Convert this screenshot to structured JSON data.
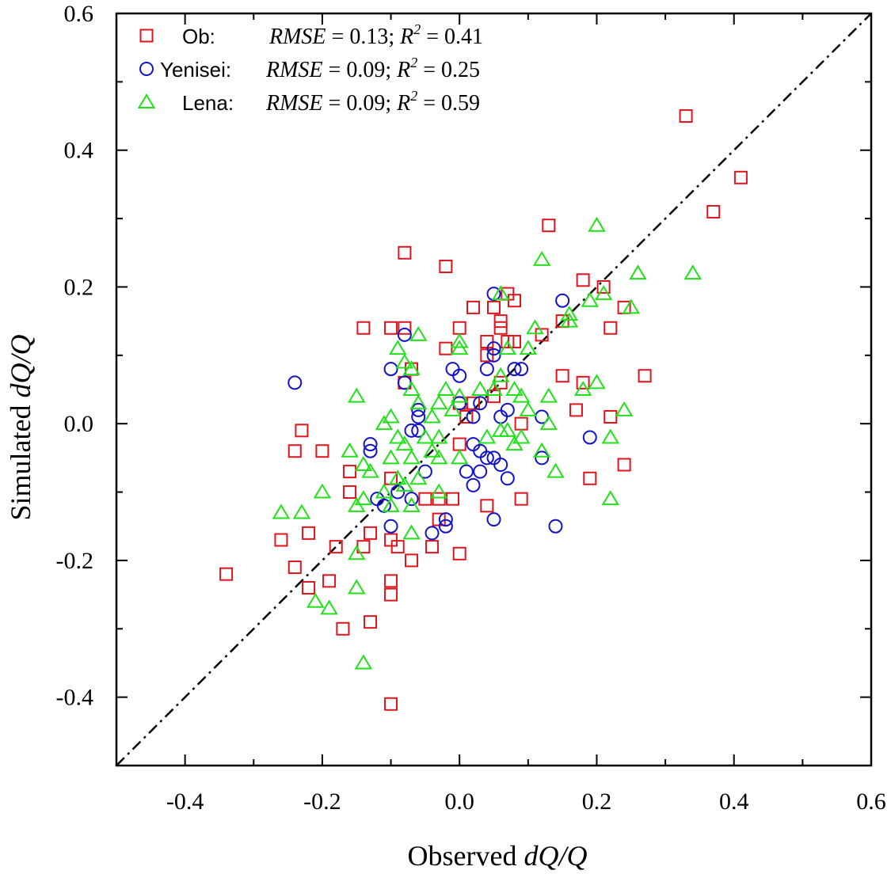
{
  "chart_data": {
    "type": "scatter",
    "xlabel": {
      "prefix": "Observed ",
      "italic": "dQ/Q"
    },
    "ylabel": {
      "prefix": "Simulated ",
      "italic": "dQ/Q"
    },
    "xlim": [
      -0.5,
      0.6
    ],
    "ylim": [
      -0.5,
      0.6
    ],
    "x_ticks": [
      "-0.4",
      "-0.2",
      "0.0",
      "0.2",
      "0.4",
      "0.6"
    ],
    "y_ticks": [
      "-0.4",
      "-0.2",
      "0.0",
      "0.2",
      "0.4",
      "0.6"
    ],
    "x_tick_values": [
      -0.4,
      -0.2,
      0.0,
      0.2,
      0.4,
      0.6
    ],
    "y_tick_values": [
      -0.4,
      -0.2,
      0.0,
      0.2,
      0.4,
      0.6
    ],
    "reference_line": "1:1 dash-dot",
    "legend_position": "top-left",
    "series": [
      {
        "name": "Ob:",
        "marker": "square",
        "color": "#e0141c",
        "stats": {
          "rmse_label": "RMSE",
          "rmse": "= 0.13;",
          "r2_label": "R",
          "r2_sup": "2",
          "r2": "= 0.41"
        },
        "points": [
          [
            -0.34,
            -0.22
          ],
          [
            -0.26,
            -0.17
          ],
          [
            -0.24,
            -0.04
          ],
          [
            -0.24,
            -0.21
          ],
          [
            -0.23,
            -0.01
          ],
          [
            -0.22,
            -0.16
          ],
          [
            -0.22,
            -0.24
          ],
          [
            -0.2,
            -0.04
          ],
          [
            -0.19,
            -0.23
          ],
          [
            -0.18,
            -0.18
          ],
          [
            -0.17,
            -0.3
          ],
          [
            -0.16,
            -0.07
          ],
          [
            -0.16,
            -0.1
          ],
          [
            -0.14,
            0.14
          ],
          [
            -0.14,
            -0.18
          ],
          [
            -0.13,
            -0.16
          ],
          [
            -0.13,
            -0.29
          ],
          [
            -0.1,
            0.14
          ],
          [
            -0.1,
            -0.08
          ],
          [
            -0.1,
            -0.17
          ],
          [
            -0.1,
            -0.23
          ],
          [
            -0.1,
            -0.25
          ],
          [
            -0.1,
            -0.41
          ],
          [
            -0.09,
            -0.18
          ],
          [
            -0.08,
            0.25
          ],
          [
            -0.08,
            0.14
          ],
          [
            -0.08,
            0.06
          ],
          [
            -0.07,
            0.08
          ],
          [
            -0.07,
            -0.2
          ],
          [
            -0.05,
            -0.11
          ],
          [
            -0.04,
            -0.18
          ],
          [
            -0.03,
            -0.14
          ],
          [
            -0.03,
            -0.11
          ],
          [
            -0.02,
            0.23
          ],
          [
            -0.02,
            0.11
          ],
          [
            -0.01,
            -0.11
          ],
          [
            0.0,
            0.14
          ],
          [
            0.0,
            0.03
          ],
          [
            0.0,
            -0.03
          ],
          [
            0.0,
            -0.19
          ],
          [
            0.01,
            0.01
          ],
          [
            0.02,
            0.17
          ],
          [
            0.02,
            0.03
          ],
          [
            0.04,
            0.12
          ],
          [
            0.04,
            0.1
          ],
          [
            0.04,
            -0.12
          ],
          [
            0.05,
            0.17
          ],
          [
            0.05,
            0.04
          ],
          [
            0.06,
            0.15
          ],
          [
            0.06,
            0.14
          ],
          [
            0.06,
            0.06
          ],
          [
            0.07,
            0.19
          ],
          [
            0.07,
            0.12
          ],
          [
            0.08,
            0.18
          ],
          [
            0.08,
            0.12
          ],
          [
            0.09,
            0.0
          ],
          [
            0.09,
            -0.11
          ],
          [
            0.12,
            0.13
          ],
          [
            0.13,
            0.29
          ],
          [
            0.15,
            0.15
          ],
          [
            0.15,
            0.07
          ],
          [
            0.17,
            0.02
          ],
          [
            0.18,
            0.21
          ],
          [
            0.18,
            0.06
          ],
          [
            0.19,
            -0.08
          ],
          [
            0.21,
            0.2
          ],
          [
            0.22,
            0.14
          ],
          [
            0.22,
            0.01
          ],
          [
            0.24,
            0.17
          ],
          [
            0.24,
            -0.06
          ],
          [
            0.27,
            0.07
          ],
          [
            0.33,
            0.45
          ],
          [
            0.37,
            0.31
          ],
          [
            0.41,
            0.36
          ]
        ]
      },
      {
        "name": "Yenisei:",
        "marker": "circle",
        "color": "#1212cc",
        "stats": {
          "rmse_label": "RMSE",
          "rmse": "= 0.09;",
          "r2_label": "R",
          "r2_sup": "2",
          "r2": "= 0.25"
        },
        "points": [
          [
            -0.24,
            0.06
          ],
          [
            -0.13,
            -0.03
          ],
          [
            -0.13,
            -0.04
          ],
          [
            -0.12,
            -0.11
          ],
          [
            -0.11,
            -0.12
          ],
          [
            -0.1,
            0.08
          ],
          [
            -0.1,
            -0.15
          ],
          [
            -0.09,
            -0.1
          ],
          [
            -0.08,
            0.13
          ],
          [
            -0.08,
            0.06
          ],
          [
            -0.07,
            -0.01
          ],
          [
            -0.07,
            -0.11
          ],
          [
            -0.06,
            0.02
          ],
          [
            -0.06,
            0.01
          ],
          [
            -0.06,
            -0.01
          ],
          [
            -0.05,
            -0.07
          ],
          [
            -0.04,
            -0.16
          ],
          [
            -0.02,
            -0.14
          ],
          [
            -0.02,
            -0.15
          ],
          [
            -0.01,
            0.08
          ],
          [
            0.0,
            0.07
          ],
          [
            0.0,
            0.03
          ],
          [
            0.01,
            -0.07
          ],
          [
            0.02,
            0.01
          ],
          [
            0.02,
            -0.03
          ],
          [
            0.02,
            -0.09
          ],
          [
            0.03,
            0.03
          ],
          [
            0.03,
            -0.04
          ],
          [
            0.03,
            -0.07
          ],
          [
            0.04,
            0.08
          ],
          [
            0.04,
            -0.05
          ],
          [
            0.05,
            0.19
          ],
          [
            0.05,
            0.11
          ],
          [
            0.05,
            0.1
          ],
          [
            0.05,
            -0.05
          ],
          [
            0.05,
            -0.14
          ],
          [
            0.06,
            0.01
          ],
          [
            0.06,
            -0.06
          ],
          [
            0.07,
            0.02
          ],
          [
            0.07,
            -0.08
          ],
          [
            0.08,
            0.08
          ],
          [
            0.09,
            0.08
          ],
          [
            0.12,
            0.01
          ],
          [
            0.12,
            -0.05
          ],
          [
            0.14,
            -0.15
          ],
          [
            0.15,
            0.18
          ],
          [
            0.19,
            -0.02
          ]
        ]
      },
      {
        "name": "Lena:",
        "marker": "triangle",
        "color": "#22e11a",
        "stats": {
          "rmse_label": "RMSE",
          "rmse": "= 0.09;",
          "r2_label": "R",
          "r2_sup": "2",
          "r2": "= 0.59"
        },
        "points": [
          [
            -0.26,
            -0.13
          ],
          [
            -0.23,
            -0.13
          ],
          [
            -0.21,
            -0.26
          ],
          [
            -0.2,
            -0.1
          ],
          [
            -0.19,
            -0.27
          ],
          [
            -0.16,
            -0.04
          ],
          [
            -0.15,
            0.04
          ],
          [
            -0.15,
            -0.12
          ],
          [
            -0.15,
            -0.19
          ],
          [
            -0.15,
            -0.24
          ],
          [
            -0.14,
            -0.06
          ],
          [
            -0.14,
            -0.11
          ],
          [
            -0.14,
            -0.35
          ],
          [
            -0.13,
            -0.07
          ],
          [
            -0.11,
            0.0
          ],
          [
            -0.11,
            -0.1
          ],
          [
            -0.1,
            0.01
          ],
          [
            -0.1,
            -0.05
          ],
          [
            -0.1,
            -0.12
          ],
          [
            -0.09,
            0.11
          ],
          [
            -0.09,
            -0.02
          ],
          [
            -0.09,
            -0.08
          ],
          [
            -0.08,
            0.09
          ],
          [
            -0.08,
            -0.03
          ],
          [
            -0.08,
            -0.09
          ],
          [
            -0.07,
            0.08
          ],
          [
            -0.07,
            0.05
          ],
          [
            -0.07,
            -0.05
          ],
          [
            -0.07,
            -0.12
          ],
          [
            -0.07,
            -0.16
          ],
          [
            -0.06,
            0.13
          ],
          [
            -0.06,
            0.03
          ],
          [
            -0.06,
            -0.08
          ],
          [
            -0.05,
            -0.02
          ],
          [
            -0.04,
            0.01
          ],
          [
            -0.04,
            -0.04
          ],
          [
            -0.03,
            0.03
          ],
          [
            -0.03,
            -0.02
          ],
          [
            -0.03,
            -0.05
          ],
          [
            -0.03,
            -0.1
          ],
          [
            -0.02,
            0.05
          ],
          [
            -0.01,
            0.02
          ],
          [
            0.0,
            0.12
          ],
          [
            0.0,
            0.11
          ],
          [
            0.0,
            0.04
          ],
          [
            0.0,
            -0.05
          ],
          [
            0.03,
            0.05
          ],
          [
            0.04,
            -0.02
          ],
          [
            0.05,
            0.05
          ],
          [
            0.06,
            0.19
          ],
          [
            0.06,
            0.07
          ],
          [
            0.06,
            -0.01
          ],
          [
            0.07,
            0.11
          ],
          [
            0.07,
            -0.01
          ],
          [
            0.08,
            0.05
          ],
          [
            0.08,
            -0.03
          ],
          [
            0.09,
            0.04
          ],
          [
            0.09,
            -0.02
          ],
          [
            0.1,
            0.11
          ],
          [
            0.1,
            0.02
          ],
          [
            0.11,
            0.14
          ],
          [
            0.12,
            0.24
          ],
          [
            0.12,
            -0.04
          ],
          [
            0.13,
            0.04
          ],
          [
            0.13,
            0.0
          ],
          [
            0.14,
            -0.07
          ],
          [
            0.16,
            0.15
          ],
          [
            0.16,
            0.16
          ],
          [
            0.18,
            0.05
          ],
          [
            0.19,
            0.18
          ],
          [
            0.2,
            0.29
          ],
          [
            0.2,
            0.06
          ],
          [
            0.21,
            0.19
          ],
          [
            0.22,
            -0.02
          ],
          [
            0.22,
            -0.11
          ],
          [
            0.24,
            0.02
          ],
          [
            0.25,
            0.17
          ],
          [
            0.26,
            0.22
          ],
          [
            0.34,
            0.22
          ]
        ]
      }
    ]
  }
}
